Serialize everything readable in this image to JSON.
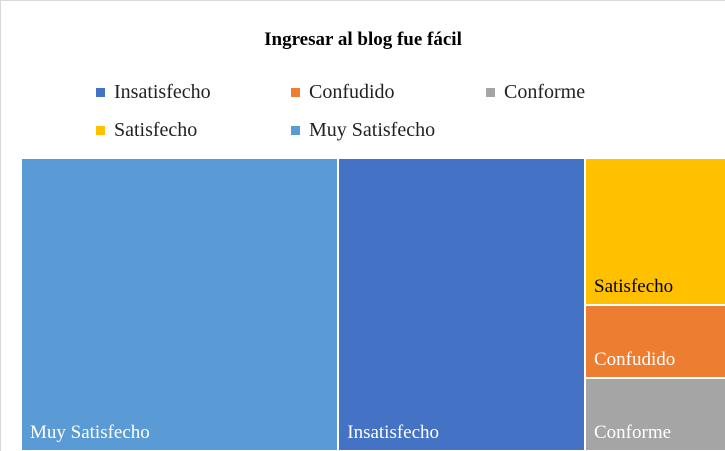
{
  "chart_data": {
    "type": "treemap",
    "title": "Ingresar al blog fue fácil",
    "categories": [
      "Insatisfecho",
      "Confudido",
      "Conforme",
      "Satisfecho",
      "Muy Satisfecho"
    ],
    "values": [
      7,
      1,
      1,
      2,
      9
    ],
    "colors": [
      "#4472c4",
      "#ed7d31",
      "#a5a5a5",
      "#ffc000",
      "#5b9bd5"
    ],
    "legend": "top"
  }
}
